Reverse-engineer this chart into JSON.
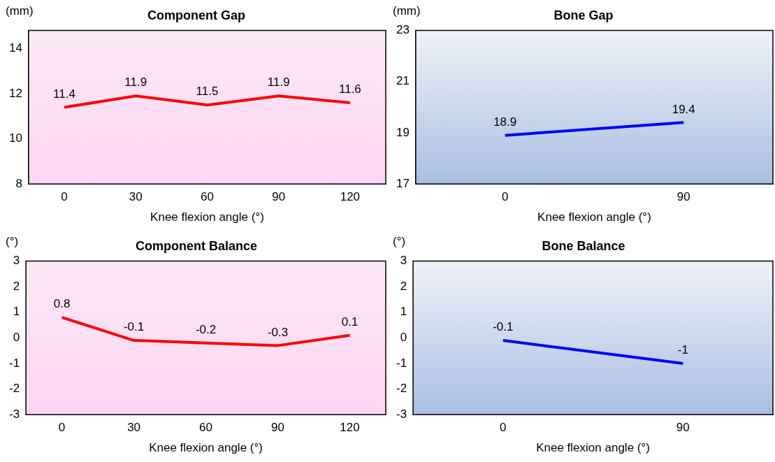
{
  "chart_data": [
    {
      "type": "line",
      "title": "Component Gap",
      "xlabel": "Knee flexion angle (°)",
      "ylabel": "(mm)",
      "categories": [
        "0",
        "30",
        "60",
        "90",
        "120"
      ],
      "series": [
        {
          "color": "#ff0000",
          "values": [
            11.4,
            11.9,
            11.5,
            11.9,
            11.6
          ]
        }
      ],
      "ylim": [
        8,
        14.8
      ],
      "yticks": [
        8,
        10,
        12,
        14
      ],
      "data_labels": true,
      "grid": false,
      "legend": false,
      "marker": "none"
    },
    {
      "type": "line",
      "title": "Bone Gap",
      "xlabel": "Knee flexion angle (°)",
      "ylabel": "(mm)",
      "categories": [
        "0",
        "90"
      ],
      "series": [
        {
          "color": "#0000ff",
          "values": [
            18.9,
            19.4
          ]
        }
      ],
      "ylim": [
        17,
        23
      ],
      "yticks": [
        17,
        19,
        21,
        23
      ],
      "data_labels": true,
      "grid": false,
      "legend": false,
      "marker": "none"
    },
    {
      "type": "line",
      "title": "Component Balance",
      "xlabel": "Knee flexion angle (°)",
      "ylabel": "(°)",
      "categories": [
        "0",
        "30",
        "60",
        "90",
        "120"
      ],
      "series": [
        {
          "color": "#ff0000",
          "values": [
            0.8,
            -0.1,
            -0.2,
            -0.3,
            0.1
          ]
        }
      ],
      "ylim": [
        -3,
        3
      ],
      "yticks": [
        -3,
        -2,
        -1,
        0,
        1,
        2,
        3
      ],
      "data_labels": true,
      "grid": false,
      "legend": false,
      "marker": "none"
    },
    {
      "type": "line",
      "title": "Bone Balance",
      "xlabel": "Knee flexion angle (°)",
      "ylabel": "(°)",
      "categories": [
        "0",
        "90"
      ],
      "series": [
        {
          "color": "#0000ff",
          "values": [
            -0.1,
            -1
          ]
        }
      ],
      "ylim": [
        -3,
        3
      ],
      "yticks": [
        -3,
        -2,
        -1,
        0,
        1,
        2,
        3
      ],
      "data_labels": true,
      "grid": false,
      "legend": false,
      "marker": "none"
    }
  ]
}
